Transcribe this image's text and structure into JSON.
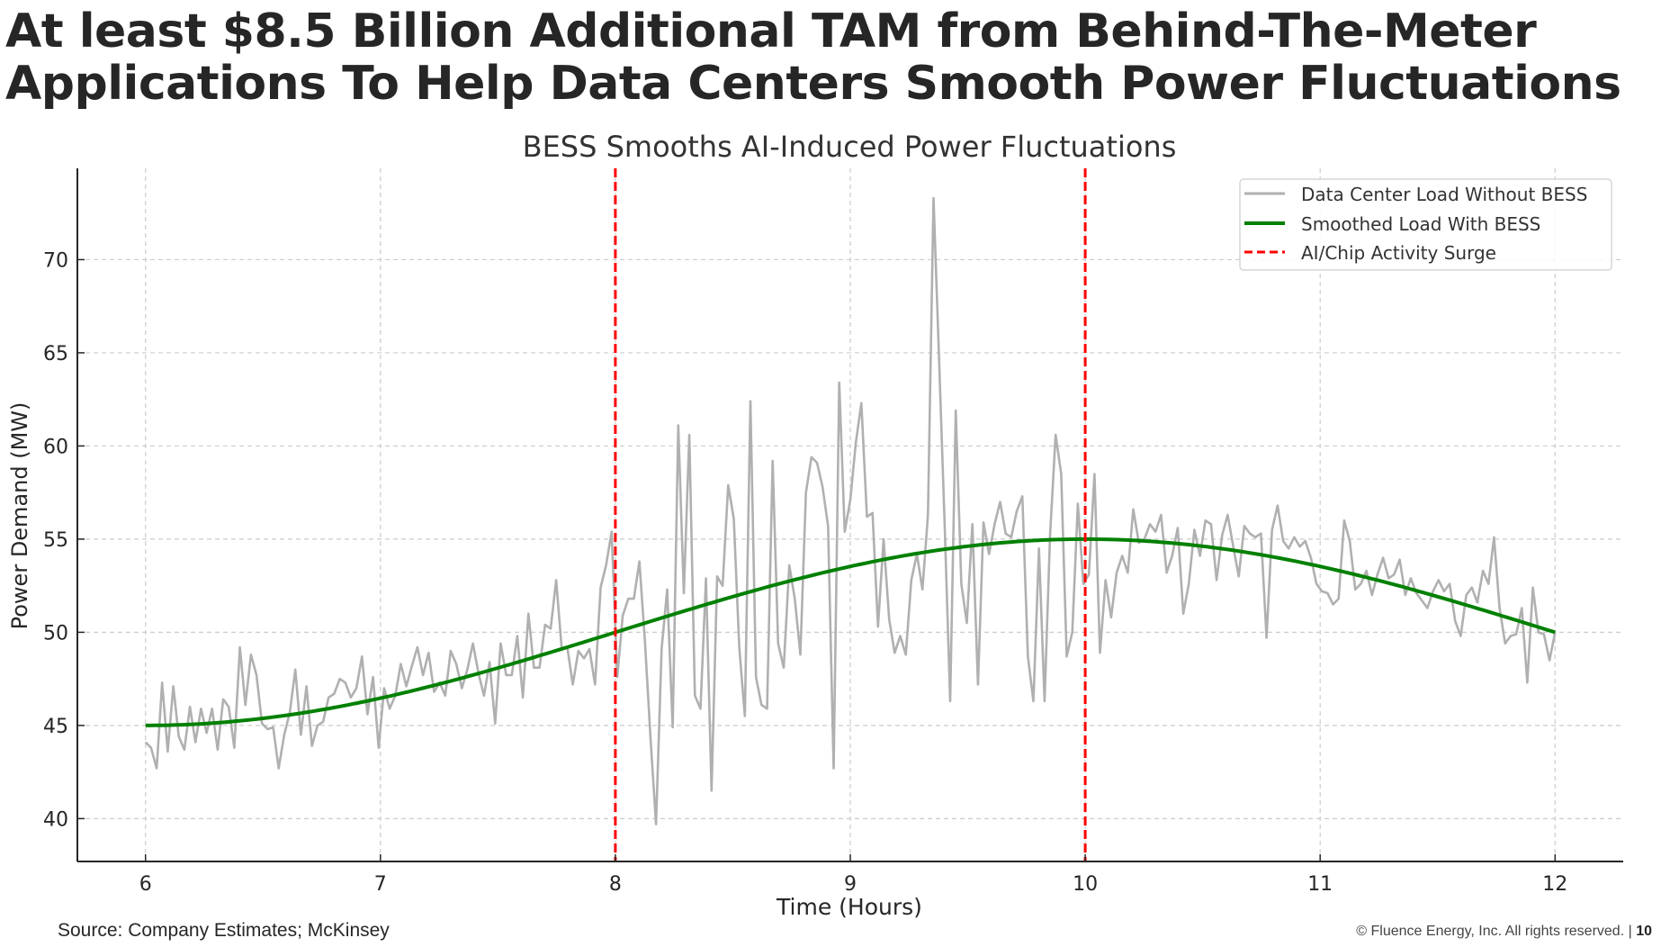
{
  "slide": {
    "headline_line1": "At least $8.5 Billion Additional TAM from Behind-The-Meter",
    "headline_line2": "Applications To Help Data Centers Smooth Power Fluctuations",
    "source": "Source: Company Estimates; McKinsey",
    "copyright": "© Fluence Energy, Inc. All rights reserved. |",
    "page_number": "10"
  },
  "colors": {
    "raw_series": "#b0b0b0",
    "smoothed_series": "#008000",
    "surge_marker": "#ff0000",
    "grid": "#cccccc",
    "text": "#262626"
  },
  "chart_data": {
    "type": "line",
    "title": "BESS Smooths AI-Induced Power Fluctuations",
    "xlabel": "Time (Hours)",
    "ylabel": "Power Demand (MW)",
    "xlim": [
      5.71,
      12.29
    ],
    "ylim": [
      37.7,
      74.9
    ],
    "xticks": [
      6,
      7,
      8,
      9,
      10,
      11,
      12
    ],
    "yticks": [
      40,
      45,
      50,
      55,
      60,
      65,
      70
    ],
    "grid": true,
    "legend_position": "top-right",
    "legend": [
      {
        "label": "Data Center Load Without BESS",
        "style": "solid",
        "color": "#b0b0b0"
      },
      {
        "label": "Smoothed Load With BESS",
        "style": "solid",
        "color": "#008000"
      },
      {
        "label": "AI/Chip Activity Surge",
        "style": "dashed",
        "color": "#ff0000"
      }
    ],
    "vertical_lines": [
      8,
      10
    ],
    "series": [
      {
        "name": "Data Center Load Without BESS",
        "x_start": 6,
        "x_end": 12,
        "values": [
          44.1,
          43.8,
          42.7,
          47.3,
          43.6,
          47.1,
          44.4,
          43.7,
          46.0,
          44.1,
          45.9,
          44.6,
          45.9,
          43.7,
          46.4,
          46.0,
          43.8,
          49.2,
          46.1,
          48.8,
          47.7,
          45.1,
          44.8,
          44.9,
          42.7,
          44.5,
          45.7,
          48.0,
          44.5,
          47.1,
          43.9,
          45.0,
          45.2,
          46.5,
          46.7,
          47.5,
          47.3,
          46.5,
          47.0,
          48.7,
          45.6,
          47.6,
          43.8,
          47.0,
          45.9,
          46.6,
          48.3,
          47.1,
          48.2,
          49.2,
          47.7,
          48.9,
          46.8,
          47.3,
          46.6,
          49.0,
          48.3,
          47.0,
          48.0,
          49.4,
          47.8,
          46.6,
          48.4,
          45.1,
          49.4,
          47.7,
          47.7,
          49.8,
          46.5,
          51.0,
          48.1,
          48.1,
          50.4,
          50.2,
          52.8,
          49.1,
          49.2,
          47.2,
          49.0,
          48.6,
          49.1,
          47.2,
          52.4,
          53.6,
          55.4,
          47.6,
          50.9,
          51.8,
          51.8,
          53.8,
          49.5,
          44.3,
          39.7,
          49.1,
          52.3,
          44.9,
          61.1,
          52.1,
          60.6,
          46.6,
          45.9,
          52.9,
          41.5,
          53.0,
          52.5,
          57.9,
          56.1,
          49.2,
          45.5,
          62.4,
          47.6,
          46.1,
          45.9,
          59.2,
          49.4,
          48.1,
          53.6,
          51.8,
          48.8,
          57.5,
          59.4,
          59.1,
          57.8,
          55.7,
          42.7,
          63.4,
          55.4,
          57.1,
          60.2,
          62.3,
          56.2,
          56.4,
          50.3,
          55.0,
          50.7,
          48.9,
          49.8,
          48.8,
          52.8,
          54.2,
          52.3,
          56.3,
          73.3,
          64.6,
          55.9,
          46.3,
          61.9,
          52.6,
          50.5,
          55.8,
          47.2,
          55.9,
          54.2,
          55.8,
          57.0,
          55.3,
          55.1,
          56.5,
          57.3,
          48.7,
          46.3,
          54.5,
          46.3,
          55.2,
          60.6,
          58.5,
          48.7,
          50.0,
          56.9,
          52.6,
          53.1,
          58.5,
          48.9,
          52.8,
          50.8,
          53.2,
          54.1,
          53.2,
          56.6,
          54.8,
          55.0,
          55.8,
          55.4,
          56.3,
          53.2,
          54.1,
          55.6,
          51.0,
          52.6,
          55.5,
          54.1,
          56.0,
          55.8,
          52.8,
          55.2,
          56.3,
          54.6,
          53.0,
          55.7,
          55.3,
          55.1,
          55.3,
          49.7,
          55.5,
          56.8,
          54.9,
          54.5,
          55.1,
          54.6,
          54.9,
          54.0,
          52.6,
          52.2,
          52.1,
          51.5,
          51.8,
          56.0,
          54.9,
          52.3,
          52.6,
          53.3,
          52.0,
          53.1,
          54.0,
          52.9,
          53.1,
          53.9,
          52.0,
          52.9,
          52.1,
          51.7,
          51.3,
          52.2,
          52.8,
          52.2,
          52.6,
          50.6,
          49.8,
          52.0,
          52.4,
          51.6,
          53.3,
          52.6,
          55.1,
          51.3,
          49.4,
          49.8,
          49.9,
          51.3,
          47.3,
          52.4,
          50.0,
          49.9,
          48.5,
          50.0
        ]
      },
      {
        "name": "Smoothed Load With BESS",
        "formula": "50 + 5*sin(pi*(t-8)/4)",
        "x_start": 6,
        "x_end": 12,
        "values": [
          45.0,
          45.1,
          45.2,
          45.5,
          45.9,
          46.5,
          47.1,
          47.8,
          48.5,
          49.2,
          50.0,
          50.8,
          51.5,
          52.2,
          52.9,
          53.5,
          54.1,
          54.5,
          54.8,
          55.0,
          55.0,
          55.0,
          54.8,
          54.5,
          54.1,
          53.5,
          52.9,
          52.2,
          51.5,
          50.8,
          50.0
        ]
      }
    ]
  }
}
